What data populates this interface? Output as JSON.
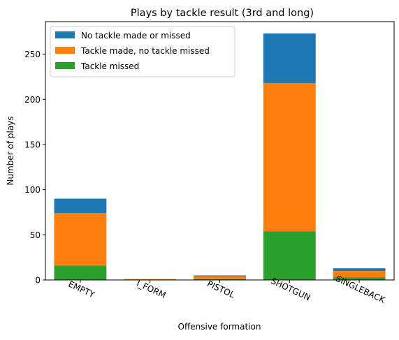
{
  "chart_data": {
    "type": "bar",
    "stacked": true,
    "title": "Plays by tackle result (3rd and long)",
    "xlabel": "Offensive formation",
    "ylabel": "Number of plays",
    "categories": [
      "EMPTY",
      "I_FORM",
      "PISTOL",
      "SHOTGUN",
      "SINGLEBACK"
    ],
    "series": [
      {
        "name": "Tackle missed",
        "color": "#2ca02c",
        "values": [
          16,
          0,
          1,
          54,
          3
        ]
      },
      {
        "name": "Tackle made, no tackle missed",
        "color": "#ff7f0e",
        "values": [
          58,
          1,
          3,
          164,
          7
        ]
      },
      {
        "name": "No tackle made or missed",
        "color": "#1f77b4",
        "values": [
          16,
          0,
          1,
          55,
          3
        ]
      }
    ],
    "legend_order": [
      "No tackle made or missed",
      "Tackle made, no tackle missed",
      "Tackle missed"
    ],
    "legend_position": "top-left",
    "ylim": [
      0,
      286
    ],
    "yticks": [
      0,
      50,
      100,
      150,
      200,
      250
    ],
    "grid": false
  }
}
